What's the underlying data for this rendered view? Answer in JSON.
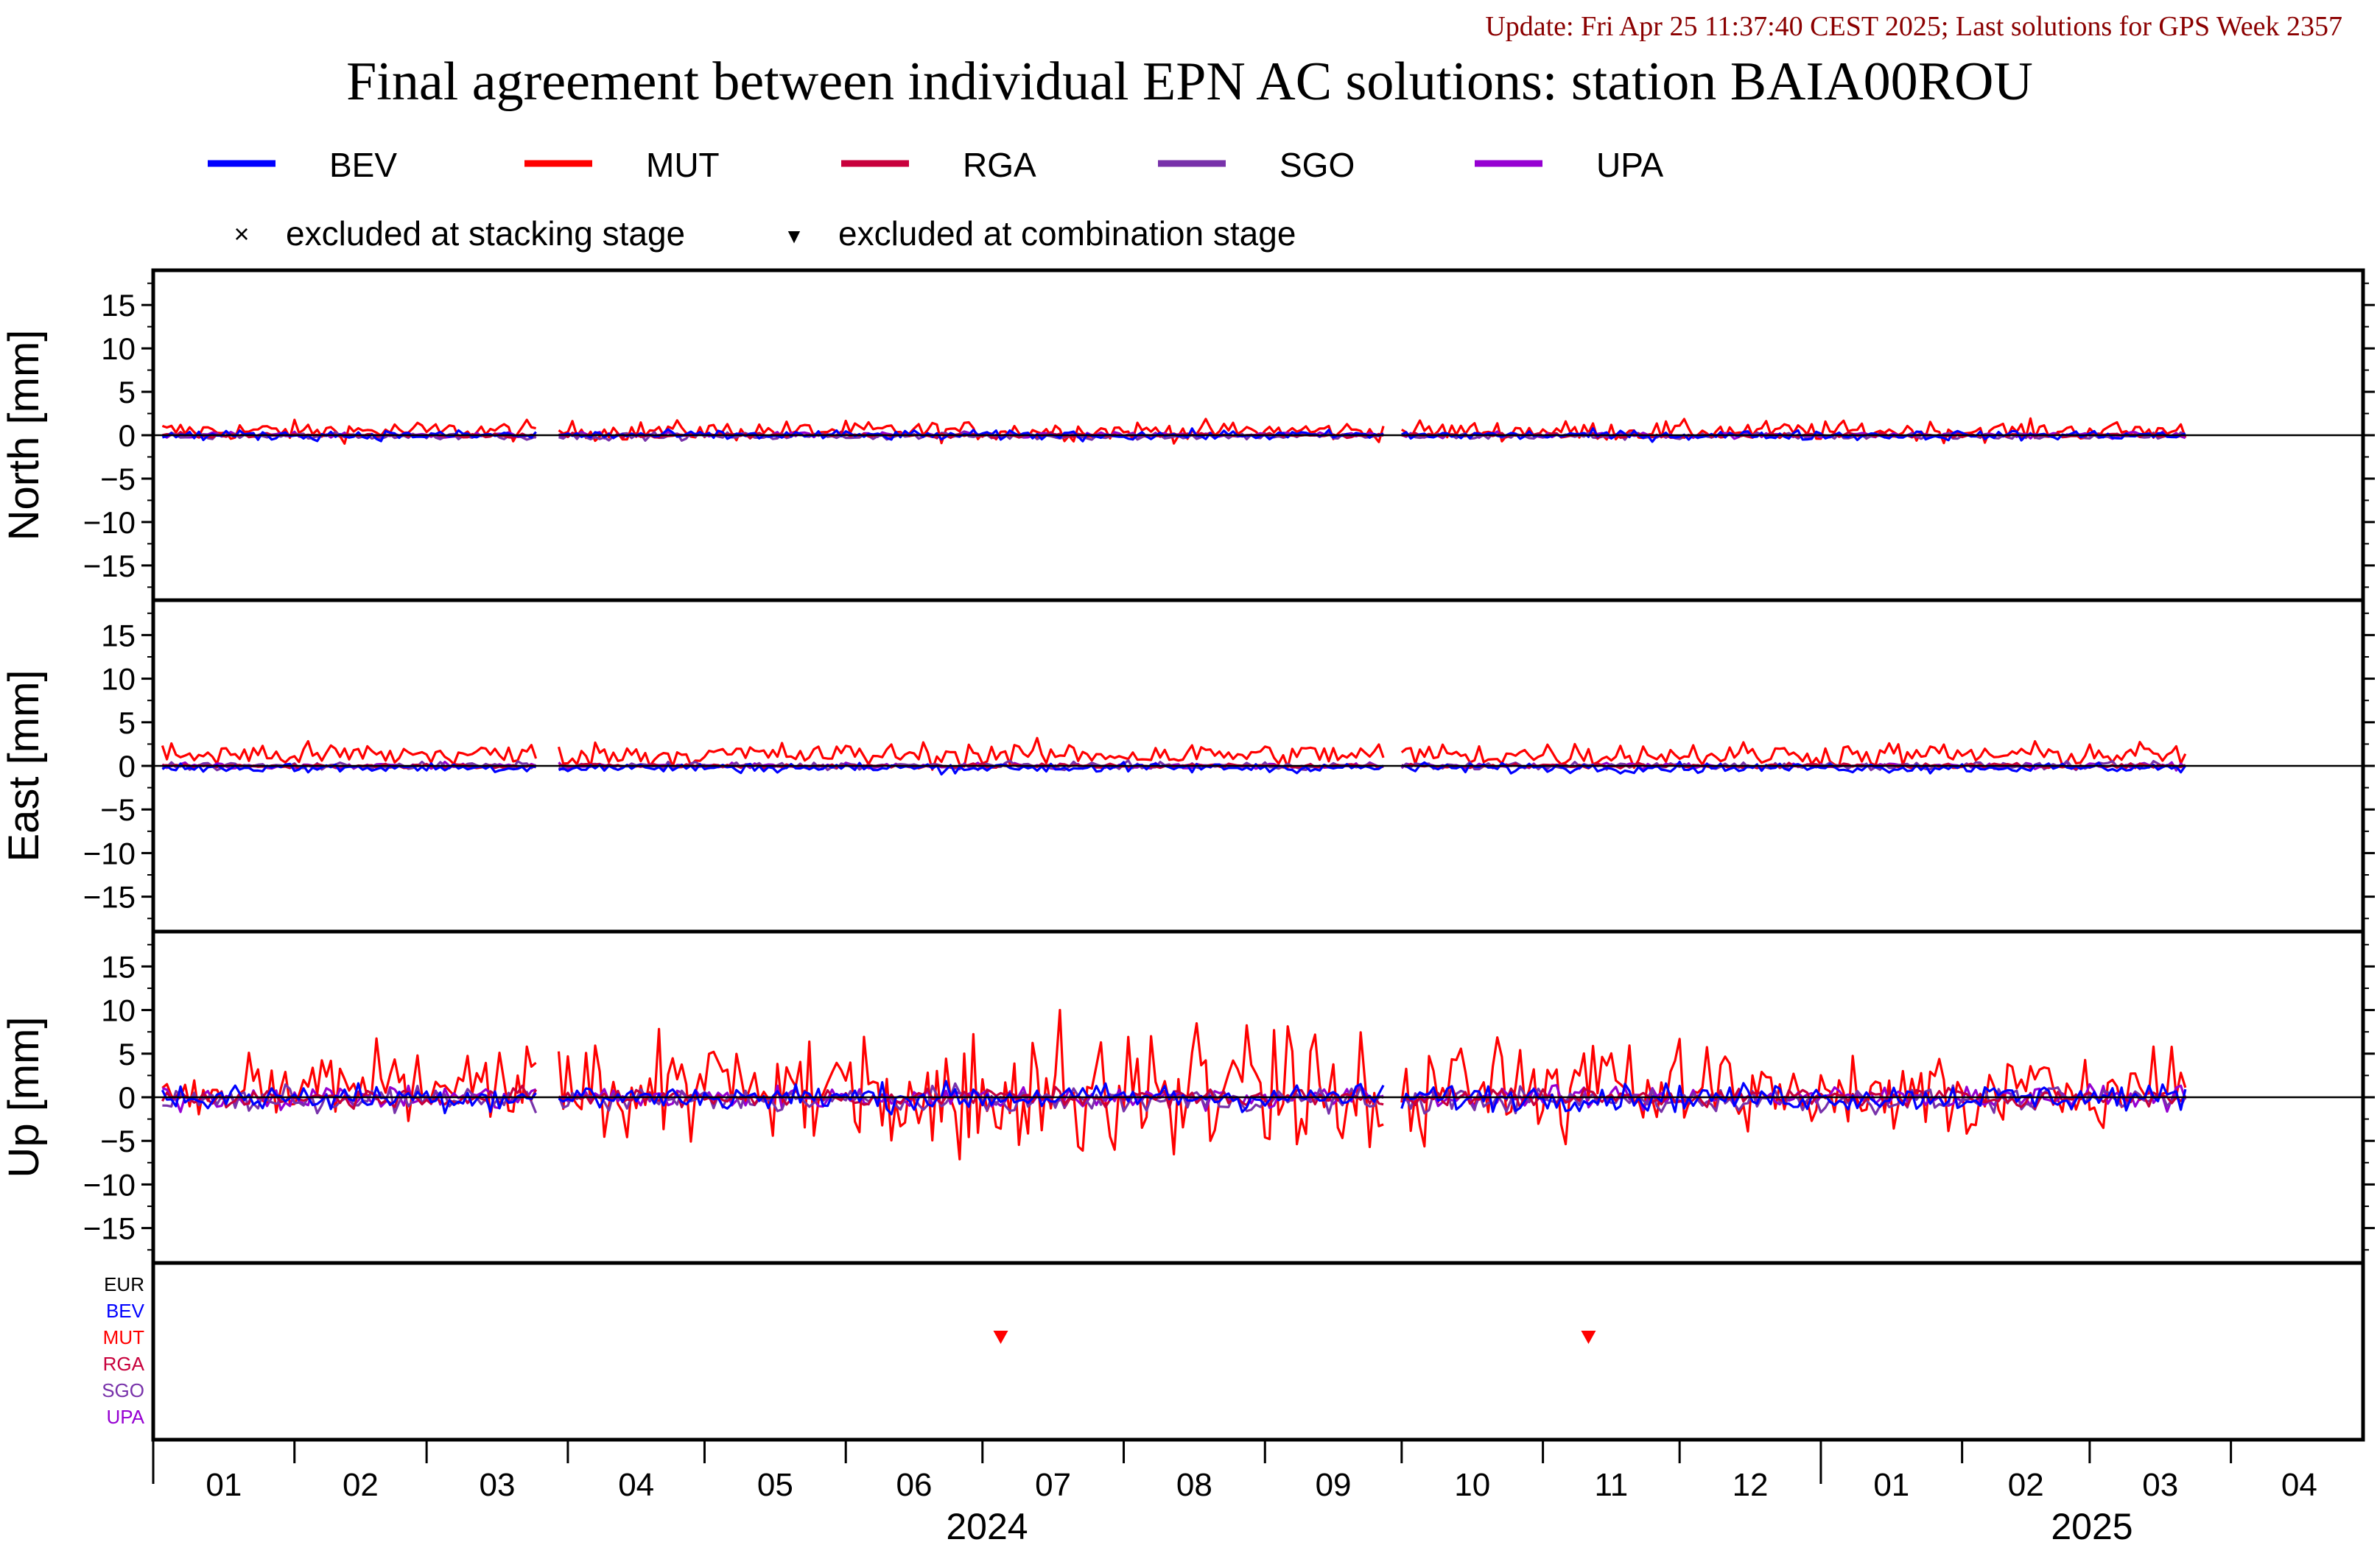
{
  "update_text": "Update: Fri Apr 25 11:37:40 CEST 2025; Last solutions for GPS Week 2357",
  "title": "Final agreement between individual EPN AC solutions: station BAIA00ROU",
  "legend": {
    "items": [
      {
        "name": "BEV",
        "color": "#0000ff"
      },
      {
        "name": "MUT",
        "color": "#ff0000"
      },
      {
        "name": "RGA",
        "color": "#c8003c"
      },
      {
        "name": "SGO",
        "color": "#7832aa"
      },
      {
        "name": "UPA",
        "color": "#9600d2"
      }
    ],
    "excluded_stacking": "excluded at stacking stage",
    "excluded_combination": "excluded at combination stage",
    "stacking_symbol": "×",
    "combination_symbol": "▼"
  },
  "chart_data": {
    "type": "line",
    "x_axis": {
      "months": [
        "01",
        "02",
        "03",
        "04",
        "05",
        "06",
        "07",
        "08",
        "09",
        "10",
        "11",
        "12",
        "01",
        "02",
        "03",
        "04"
      ],
      "years": [
        "2024",
        "2025"
      ],
      "range": [
        "2024-01-01",
        "2025-04-30"
      ]
    },
    "panels": [
      {
        "name": "north",
        "ylabel": "North [mm]",
        "ylim": [
          -19,
          19
        ],
        "yticks": [
          "15",
          "10",
          "5",
          "0",
          "−5",
          "−10",
          "−15"
        ],
        "amplitudes": {
          "BEV": 0.8,
          "MUT": 1.6,
          "RGA": 0.4,
          "SGO": 0.6,
          "UPA": 0.5
        },
        "offsets": {
          "BEV": 0,
          "MUT": 0.5,
          "RGA": 0,
          "SGO": -0.1,
          "UPA": 0
        }
      },
      {
        "name": "east",
        "ylabel": "East [mm]",
        "ylim": [
          -19,
          19
        ],
        "yticks": [
          "15",
          "10",
          "5",
          "0",
          "−5",
          "−10",
          "−15"
        ],
        "amplitudes": {
          "BEV": 0.8,
          "MUT": 2.0,
          "RGA": 0.4,
          "SGO": 0.6,
          "UPA": 0.5
        },
        "offsets": {
          "BEV": -0.2,
          "MUT": 1.3,
          "RGA": 0,
          "SGO": 0,
          "UPA": 0
        }
      },
      {
        "name": "up",
        "ylabel": "Up [mm]",
        "ylim": [
          -19,
          19
        ],
        "yticks": [
          "15",
          "10",
          "5",
          "0",
          "−5",
          "−10",
          "−15"
        ],
        "amplitudes": {
          "BEV": 2.2,
          "MUT": 6.0,
          "RGA": 1.5,
          "SGO": 2.0,
          "UPA": 1.8
        },
        "offsets": {
          "BEV": 0,
          "MUT": 1.0,
          "RGA": 0,
          "SGO": -0.3,
          "UPA": 0
        }
      }
    ],
    "exclusion_panel": {
      "labels": [
        {
          "name": "EUR",
          "color": "#000000"
        },
        {
          "name": "BEV",
          "color": "#0000ff"
        },
        {
          "name": "MUT",
          "color": "#ff0000"
        },
        {
          "name": "RGA",
          "color": "#c8003c"
        },
        {
          "name": "SGO",
          "color": "#7832aa"
        },
        {
          "name": "UPA",
          "color": "#9600d2"
        }
      ],
      "markers": [
        {
          "date": "2024-07-05",
          "ac": "MUT",
          "stage": "combination"
        },
        {
          "date": "2024-11-11",
          "ac": "MUT",
          "stage": "combination"
        }
      ]
    }
  }
}
